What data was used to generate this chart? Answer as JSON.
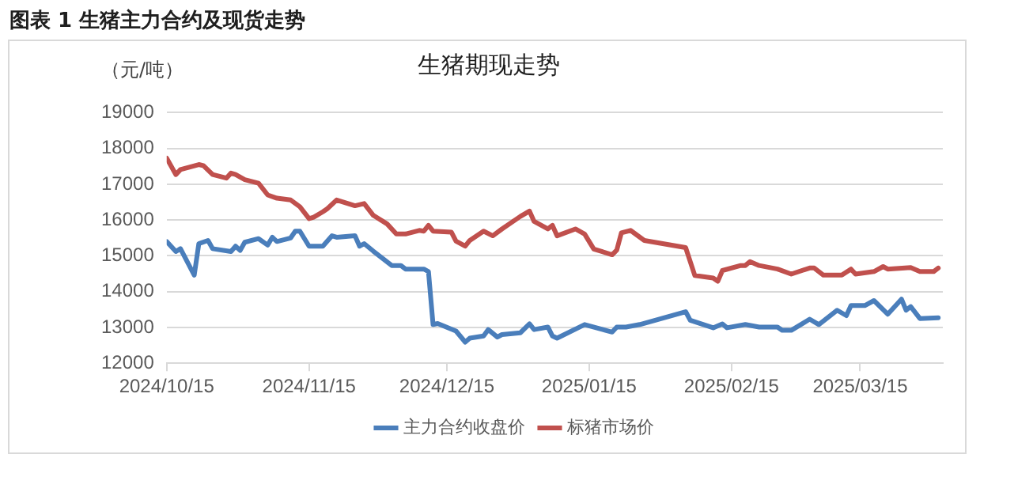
{
  "chart_data": {
    "type": "line",
    "title": "图表 1  生猪主力合约及现货走势",
    "subtitle": "生猪期现走势",
    "ylabel": "（元/吨）",
    "xlim": [
      "2024-10-15",
      "2025-04-02"
    ],
    "xticks": [
      {
        "value": "2024-10-15",
        "label": "2024/10/15"
      },
      {
        "value": "2024-11-15",
        "label": "2024/11/15"
      },
      {
        "value": "2024-12-15",
        "label": "2024/12/15"
      },
      {
        "value": "2025-01-15",
        "label": "2025/01/15"
      },
      {
        "value": "2025-02-15",
        "label": "2025/02/15"
      },
      {
        "value": "2025-03-15",
        "label": "2025/03/15"
      }
    ],
    "ylim": [
      12000,
      19000
    ],
    "yticks": [
      12000,
      13000,
      14000,
      15000,
      16000,
      17000,
      18000,
      19000
    ],
    "grid": "y",
    "legend": "bottom",
    "marker": "none",
    "line_style": "solid",
    "series": [
      {
        "name": "主力合约收盘价",
        "color": "#4a7ebb",
        "x": [
          "2024-10-15",
          "2024-10-17",
          "2024-10-18",
          "2024-10-21",
          "2024-10-22",
          "2024-10-24",
          "2024-10-25",
          "2024-10-29",
          "2024-10-30",
          "2024-10-31",
          "2024-11-01",
          "2024-11-04",
          "2024-11-06",
          "2024-11-07",
          "2024-11-08",
          "2024-11-11",
          "2024-11-12",
          "2024-11-13",
          "2024-11-15",
          "2024-11-18",
          "2024-11-20",
          "2024-11-21",
          "2024-11-25",
          "2024-11-26",
          "2024-11-27",
          "2024-11-29",
          "2024-12-03",
          "2024-12-05",
          "2024-12-06",
          "2024-12-10",
          "2024-12-11",
          "2024-12-12",
          "2024-12-13",
          "2024-12-17",
          "2024-12-19",
          "2024-12-20",
          "2024-12-23",
          "2024-12-24",
          "2024-12-26",
          "2024-12-27",
          "2024-12-31",
          "2025-01-02",
          "2025-01-03",
          "2025-01-06",
          "2025-01-07",
          "2025-01-08",
          "2025-01-14",
          "2025-01-20",
          "2025-01-21",
          "2025-01-23",
          "2025-01-26",
          "2025-02-05",
          "2025-02-06",
          "2025-02-11",
          "2025-02-13",
          "2025-02-14",
          "2025-02-18",
          "2025-02-21",
          "2025-02-25",
          "2025-02-26",
          "2025-02-28",
          "2025-03-04",
          "2025-03-06",
          "2025-03-10",
          "2025-03-12",
          "2025-03-13",
          "2025-03-16",
          "2025-03-18",
          "2025-03-21",
          "2025-03-24",
          "2025-03-25",
          "2025-03-26",
          "2025-03-28",
          "2025-04-01"
        ],
        "values": [
          15400,
          15120,
          15200,
          14460,
          15340,
          15430,
          15200,
          15120,
          15270,
          15150,
          15380,
          15480,
          15300,
          15520,
          15400,
          15500,
          15690,
          15690,
          15270,
          15270,
          15560,
          15520,
          15560,
          15270,
          15340,
          15130,
          14730,
          14730,
          14630,
          14630,
          14560,
          13080,
          13110,
          12900,
          12590,
          12700,
          12760,
          12940,
          12730,
          12800,
          12850,
          13100,
          12940,
          13010,
          12760,
          12700,
          13080,
          12870,
          13010,
          13010,
          13080,
          13440,
          13200,
          12990,
          13100,
          12990,
          13080,
          13010,
          13010,
          12920,
          12920,
          13230,
          13080,
          13480,
          13330,
          13610,
          13610,
          13750,
          13370,
          13790,
          13480,
          13580,
          13250,
          13270
        ]
      },
      {
        "name": "标猪市场价",
        "color": "#c0504d",
        "x": [
          "2024-10-15",
          "2024-10-17",
          "2024-10-18",
          "2024-10-22",
          "2024-10-23",
          "2024-10-25",
          "2024-10-28",
          "2024-10-29",
          "2024-10-30",
          "2024-11-01",
          "2024-11-04",
          "2024-11-06",
          "2024-11-08",
          "2024-11-11",
          "2024-11-13",
          "2024-11-15",
          "2024-11-16",
          "2024-11-18",
          "2024-11-19",
          "2024-11-21",
          "2024-11-25",
          "2024-11-27",
          "2024-11-29",
          "2024-12-02",
          "2024-12-04",
          "2024-12-06",
          "2024-12-09",
          "2024-12-10",
          "2024-12-11",
          "2024-12-12",
          "2024-12-16",
          "2024-12-17",
          "2024-12-19",
          "2024-12-20",
          "2024-12-23",
          "2024-12-25",
          "2024-12-27",
          "2024-12-31",
          "2025-01-02",
          "2025-01-03",
          "2025-01-06",
          "2025-01-07",
          "2025-01-08",
          "2025-01-12",
          "2025-01-14",
          "2025-01-16",
          "2025-01-20",
          "2025-01-21",
          "2025-01-22",
          "2025-01-24",
          "2025-01-27",
          "2025-02-05",
          "2025-02-07",
          "2025-02-11",
          "2025-02-12",
          "2025-02-13",
          "2025-02-17",
          "2025-02-18",
          "2025-02-19",
          "2025-02-21",
          "2025-02-25",
          "2025-02-28",
          "2025-03-04",
          "2025-03-05",
          "2025-03-07",
          "2025-03-11",
          "2025-03-13",
          "2025-03-14",
          "2025-03-18",
          "2025-03-20",
          "2025-03-21",
          "2025-03-26",
          "2025-03-28",
          "2025-03-31",
          "2025-04-01"
        ],
        "values": [
          17730,
          17270,
          17410,
          17550,
          17520,
          17270,
          17170,
          17310,
          17270,
          17130,
          17030,
          16700,
          16610,
          16560,
          16370,
          16040,
          16080,
          16230,
          16320,
          16560,
          16400,
          16460,
          16130,
          15890,
          15610,
          15610,
          15710,
          15690,
          15850,
          15690,
          15660,
          15410,
          15270,
          15430,
          15690,
          15560,
          15750,
          16100,
          16250,
          15960,
          15750,
          15850,
          15560,
          15750,
          15610,
          15190,
          15030,
          15160,
          15640,
          15710,
          15430,
          15230,
          14450,
          14380,
          14290,
          14590,
          14730,
          14730,
          14840,
          14730,
          14630,
          14490,
          14660,
          14660,
          14460,
          14460,
          14630,
          14490,
          14560,
          14700,
          14630,
          14670,
          14560,
          14560,
          14660
        ]
      }
    ]
  }
}
